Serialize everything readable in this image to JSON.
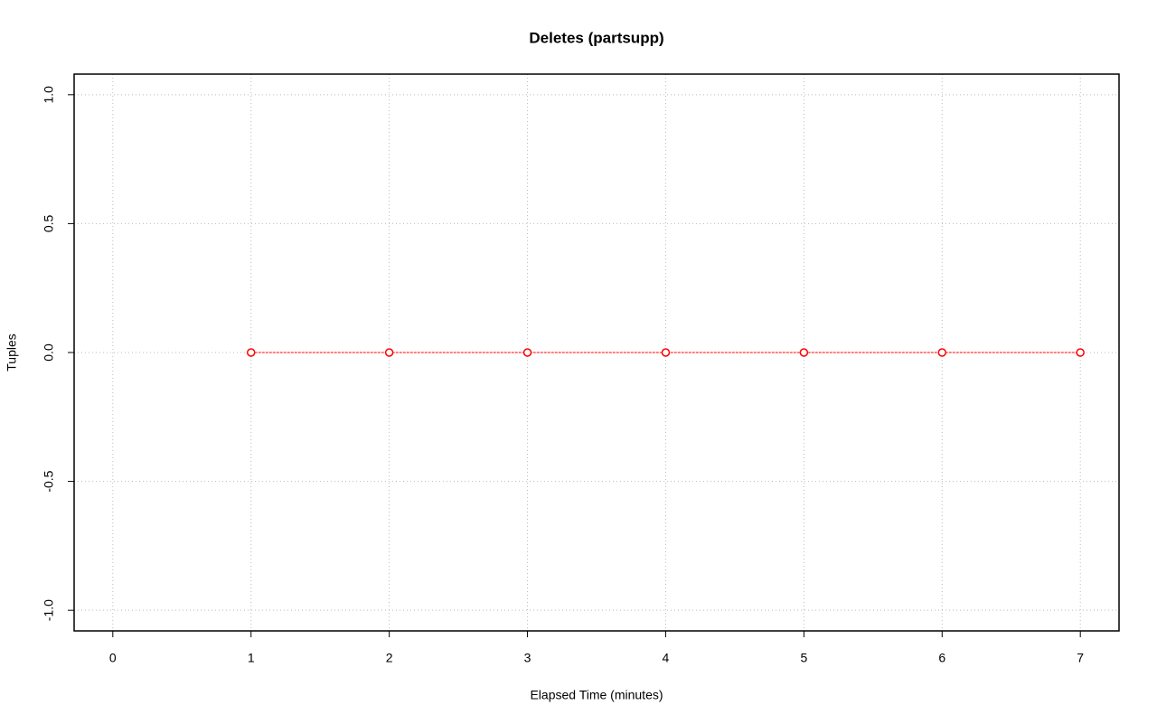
{
  "chart_data": {
    "type": "line",
    "title": "Deletes (partsupp)",
    "xlabel": "Elapsed Time (minutes)",
    "ylabel": "Tuples",
    "x": [
      1,
      2,
      3,
      4,
      5,
      6,
      7
    ],
    "values": [
      0,
      0,
      0,
      0,
      0,
      0,
      0
    ],
    "color": "#ff0000",
    "xlim": [
      -0.28,
      7.28
    ],
    "xticks": [
      0,
      1,
      2,
      3,
      4,
      5,
      6,
      7
    ],
    "ylim": [
      -1.08,
      1.08
    ],
    "yticks": [
      {
        "value": -1,
        "label": "-1.0"
      },
      {
        "value": -0.5,
        "label": "-0.5"
      },
      {
        "value": 0,
        "label": "0.0"
      },
      0.5,
      {
        "value": 1,
        "label": "1.0"
      }
    ],
    "grid": true
  }
}
